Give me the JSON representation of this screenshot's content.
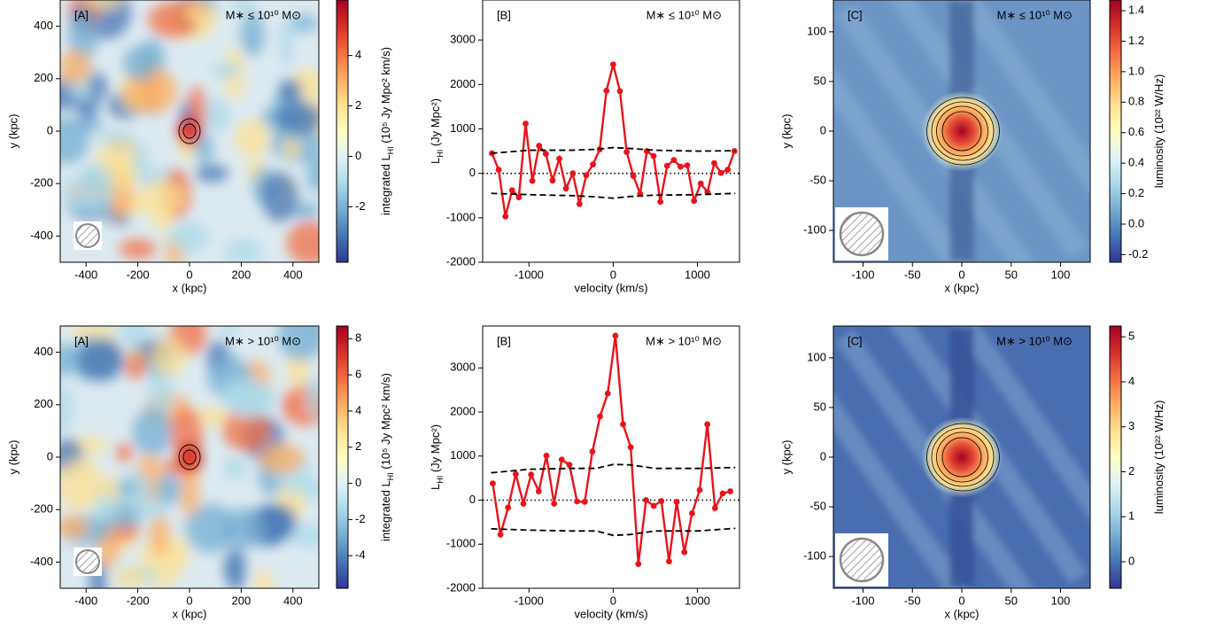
{
  "chart_data": [
    {
      "type": "heatmap",
      "panel_label": "[A]",
      "subset_label": "M∗ ≤ 10¹⁰ M⊙",
      "xlabel": "x (kpc)",
      "ylabel": "y (kpc)",
      "xlim": [
        -500,
        500
      ],
      "ylim": [
        -500,
        500
      ],
      "xticks": [
        -400,
        -200,
        0,
        200,
        400
      ],
      "yticks": [
        -400,
        -200,
        0,
        200,
        400
      ],
      "colorbar": {
        "label": {
          "main": "integrated L",
          "sub": "HI",
          "rest": " (10⁵ Jy Mpc² km/s)"
        },
        "clim": [
          -4.2,
          6.2
        ],
        "ticks": [
          -2,
          0,
          2,
          4
        ]
      }
    },
    {
      "type": "line",
      "panel_label": "[B]",
      "subset_label": "M∗ ≤ 10¹⁰ M⊙",
      "xlabel": "velocity (km/s)",
      "ylabel": {
        "main": "L",
        "sub": "HI",
        "rest": "  (Jy Mpc²)"
      },
      "xlim": [
        -1550,
        1500
      ],
      "ylim": [
        -2000,
        3900
      ],
      "xticks": [
        -1000,
        0,
        1000
      ],
      "yticks": [
        -2000,
        -1000,
        0,
        1000,
        2000,
        3000
      ],
      "reference_line": 0,
      "series": [
        {
          "color": "#e8141b",
          "style": "solid",
          "markers": true,
          "x": [
            -1440,
            -1360,
            -1280,
            -1200,
            -1120,
            -1040,
            -960,
            -880,
            -800,
            -720,
            -640,
            -560,
            -480,
            -400,
            -320,
            -240,
            -160,
            -80,
            0,
            80,
            160,
            240,
            320,
            400,
            480,
            560,
            640,
            720,
            800,
            880,
            960,
            1040,
            1120,
            1200,
            1280,
            1360,
            1440
          ],
          "values": [
            450,
            80,
            -970,
            -380,
            -540,
            1120,
            -170,
            620,
            440,
            -160,
            330,
            -340,
            0,
            -690,
            -40,
            200,
            540,
            1860,
            2450,
            1850,
            480,
            -60,
            -460,
            500,
            390,
            -640,
            170,
            300,
            150,
            180,
            -620,
            -230,
            -420,
            230,
            10,
            80,
            500
          ]
        },
        {
          "color": "#000000",
          "style": "dashed",
          "markers": false,
          "x": [
            -1450,
            -1000,
            -500,
            -200,
            0,
            200,
            500,
            1000,
            1450
          ],
          "values": [
            450,
            520,
            520,
            540,
            580,
            560,
            520,
            500,
            510
          ]
        },
        {
          "color": "#000000",
          "style": "dashed",
          "markers": false,
          "x": [
            -1450,
            -1000,
            -500,
            -200,
            0,
            200,
            500,
            1000,
            1450
          ],
          "values": [
            -450,
            -480,
            -500,
            -530,
            -560,
            -520,
            -490,
            -480,
            -450
          ]
        }
      ]
    },
    {
      "type": "heatmap",
      "panel_label": "[C]",
      "subset_label": "M∗ ≤ 10¹⁰ M⊙",
      "xlabel": "x (kpc)",
      "ylabel": "y (kpc)",
      "xlim": [
        -130,
        130
      ],
      "ylim": [
        -132,
        132
      ],
      "xticks": [
        -100,
        -50,
        0,
        50,
        100
      ],
      "yticks": [
        -100,
        -50,
        0,
        50,
        100
      ],
      "colorbar": {
        "label": {
          "main": "luminosity (10²² W/Hz)",
          "sub": "",
          "rest": ""
        },
        "clim": [
          -0.25,
          1.47
        ],
        "ticks": [
          -0.2,
          {
            "value": 0,
            "label": "0.0"
          },
          0.2,
          0.4,
          0.6,
          0.8,
          {
            "value": 1,
            "label": "1.0"
          },
          1.2,
          1.4
        ]
      }
    },
    {
      "type": "heatmap",
      "panel_label": "[A]",
      "subset_label": "M∗ > 10¹⁰ M⊙",
      "xlabel": "x (kpc)",
      "ylabel": "y (kpc)",
      "xlim": [
        -500,
        500
      ],
      "ylim": [
        -500,
        500
      ],
      "xticks": [
        -400,
        -200,
        0,
        200,
        400
      ],
      "yticks": [
        -400,
        -200,
        0,
        200,
        400
      ],
      "colorbar": {
        "label": {
          "main": "integrated L",
          "sub": "HI",
          "rest": " (10⁵ Jy Mpc² km/s)"
        },
        "clim": [
          -5.8,
          8.7
        ],
        "ticks": [
          -4,
          -2,
          0,
          2,
          4,
          6,
          8
        ]
      }
    },
    {
      "type": "line",
      "panel_label": "[B]",
      "subset_label": "M∗ > 10¹⁰ M⊙",
      "xlabel": "velocity (km/s)",
      "ylabel": {
        "main": "L",
        "sub": "HI",
        "rest": "  (Jy Mpc²)"
      },
      "xlim": [
        -1550,
        1500
      ],
      "ylim": [
        -2000,
        3950
      ],
      "xticks": [
        -1000,
        0,
        1000
      ],
      "yticks": [
        -2000,
        -1000,
        0,
        1000,
        2000,
        3000
      ],
      "reference_line": 0,
      "series": [
        {
          "color": "#e8141b",
          "style": "solid",
          "markers": true,
          "x": [
            -1430,
            -1339,
            -1248,
            -1157,
            -1066,
            -975,
            -884,
            -793,
            -702,
            -611,
            -520,
            -429,
            -338,
            -247,
            -156,
            -65,
            26,
            117,
            208,
            299,
            390,
            481,
            572,
            663,
            754,
            845,
            936,
            1027,
            1118,
            1209,
            1300,
            1391
          ],
          "values": [
            380,
            -780,
            -170,
            590,
            -80,
            580,
            200,
            1010,
            -80,
            920,
            800,
            -30,
            -40,
            1100,
            1900,
            2420,
            3730,
            1720,
            1200,
            -1450,
            0,
            -130,
            -20,
            -1390,
            -40,
            -1180,
            -300,
            230,
            1720,
            -180,
            150,
            200
          ]
        },
        {
          "color": "#000000",
          "style": "dashed",
          "markers": false,
          "x": [
            -1450,
            -1000,
            -500,
            -200,
            0,
            200,
            500,
            1000,
            1450
          ],
          "values": [
            620,
            700,
            720,
            720,
            810,
            800,
            720,
            720,
            740
          ]
        },
        {
          "color": "#000000",
          "style": "dashed",
          "markers": false,
          "x": [
            -1450,
            -1000,
            -500,
            -200,
            0,
            200,
            500,
            1000,
            1450
          ],
          "values": [
            -650,
            -680,
            -700,
            -700,
            -800,
            -780,
            -700,
            -700,
            -640
          ]
        }
      ]
    },
    {
      "type": "heatmap",
      "panel_label": "[C]",
      "subset_label": "M∗ > 10¹⁰ M⊙",
      "xlabel": "x (kpc)",
      "ylabel": "y (kpc)",
      "xlim": [
        -130,
        130
      ],
      "ylim": [
        -132,
        132
      ],
      "xticks": [
        -100,
        -50,
        0,
        50,
        100
      ],
      "yticks": [
        -100,
        -50,
        0,
        50,
        100
      ],
      "colorbar": {
        "label": {
          "main": "luminosity (10²² W/Hz)",
          "sub": "",
          "rest": ""
        },
        "clim": [
          -0.59,
          5.24
        ],
        "ticks": [
          0,
          1,
          2,
          3,
          4,
          5
        ]
      }
    }
  ]
}
